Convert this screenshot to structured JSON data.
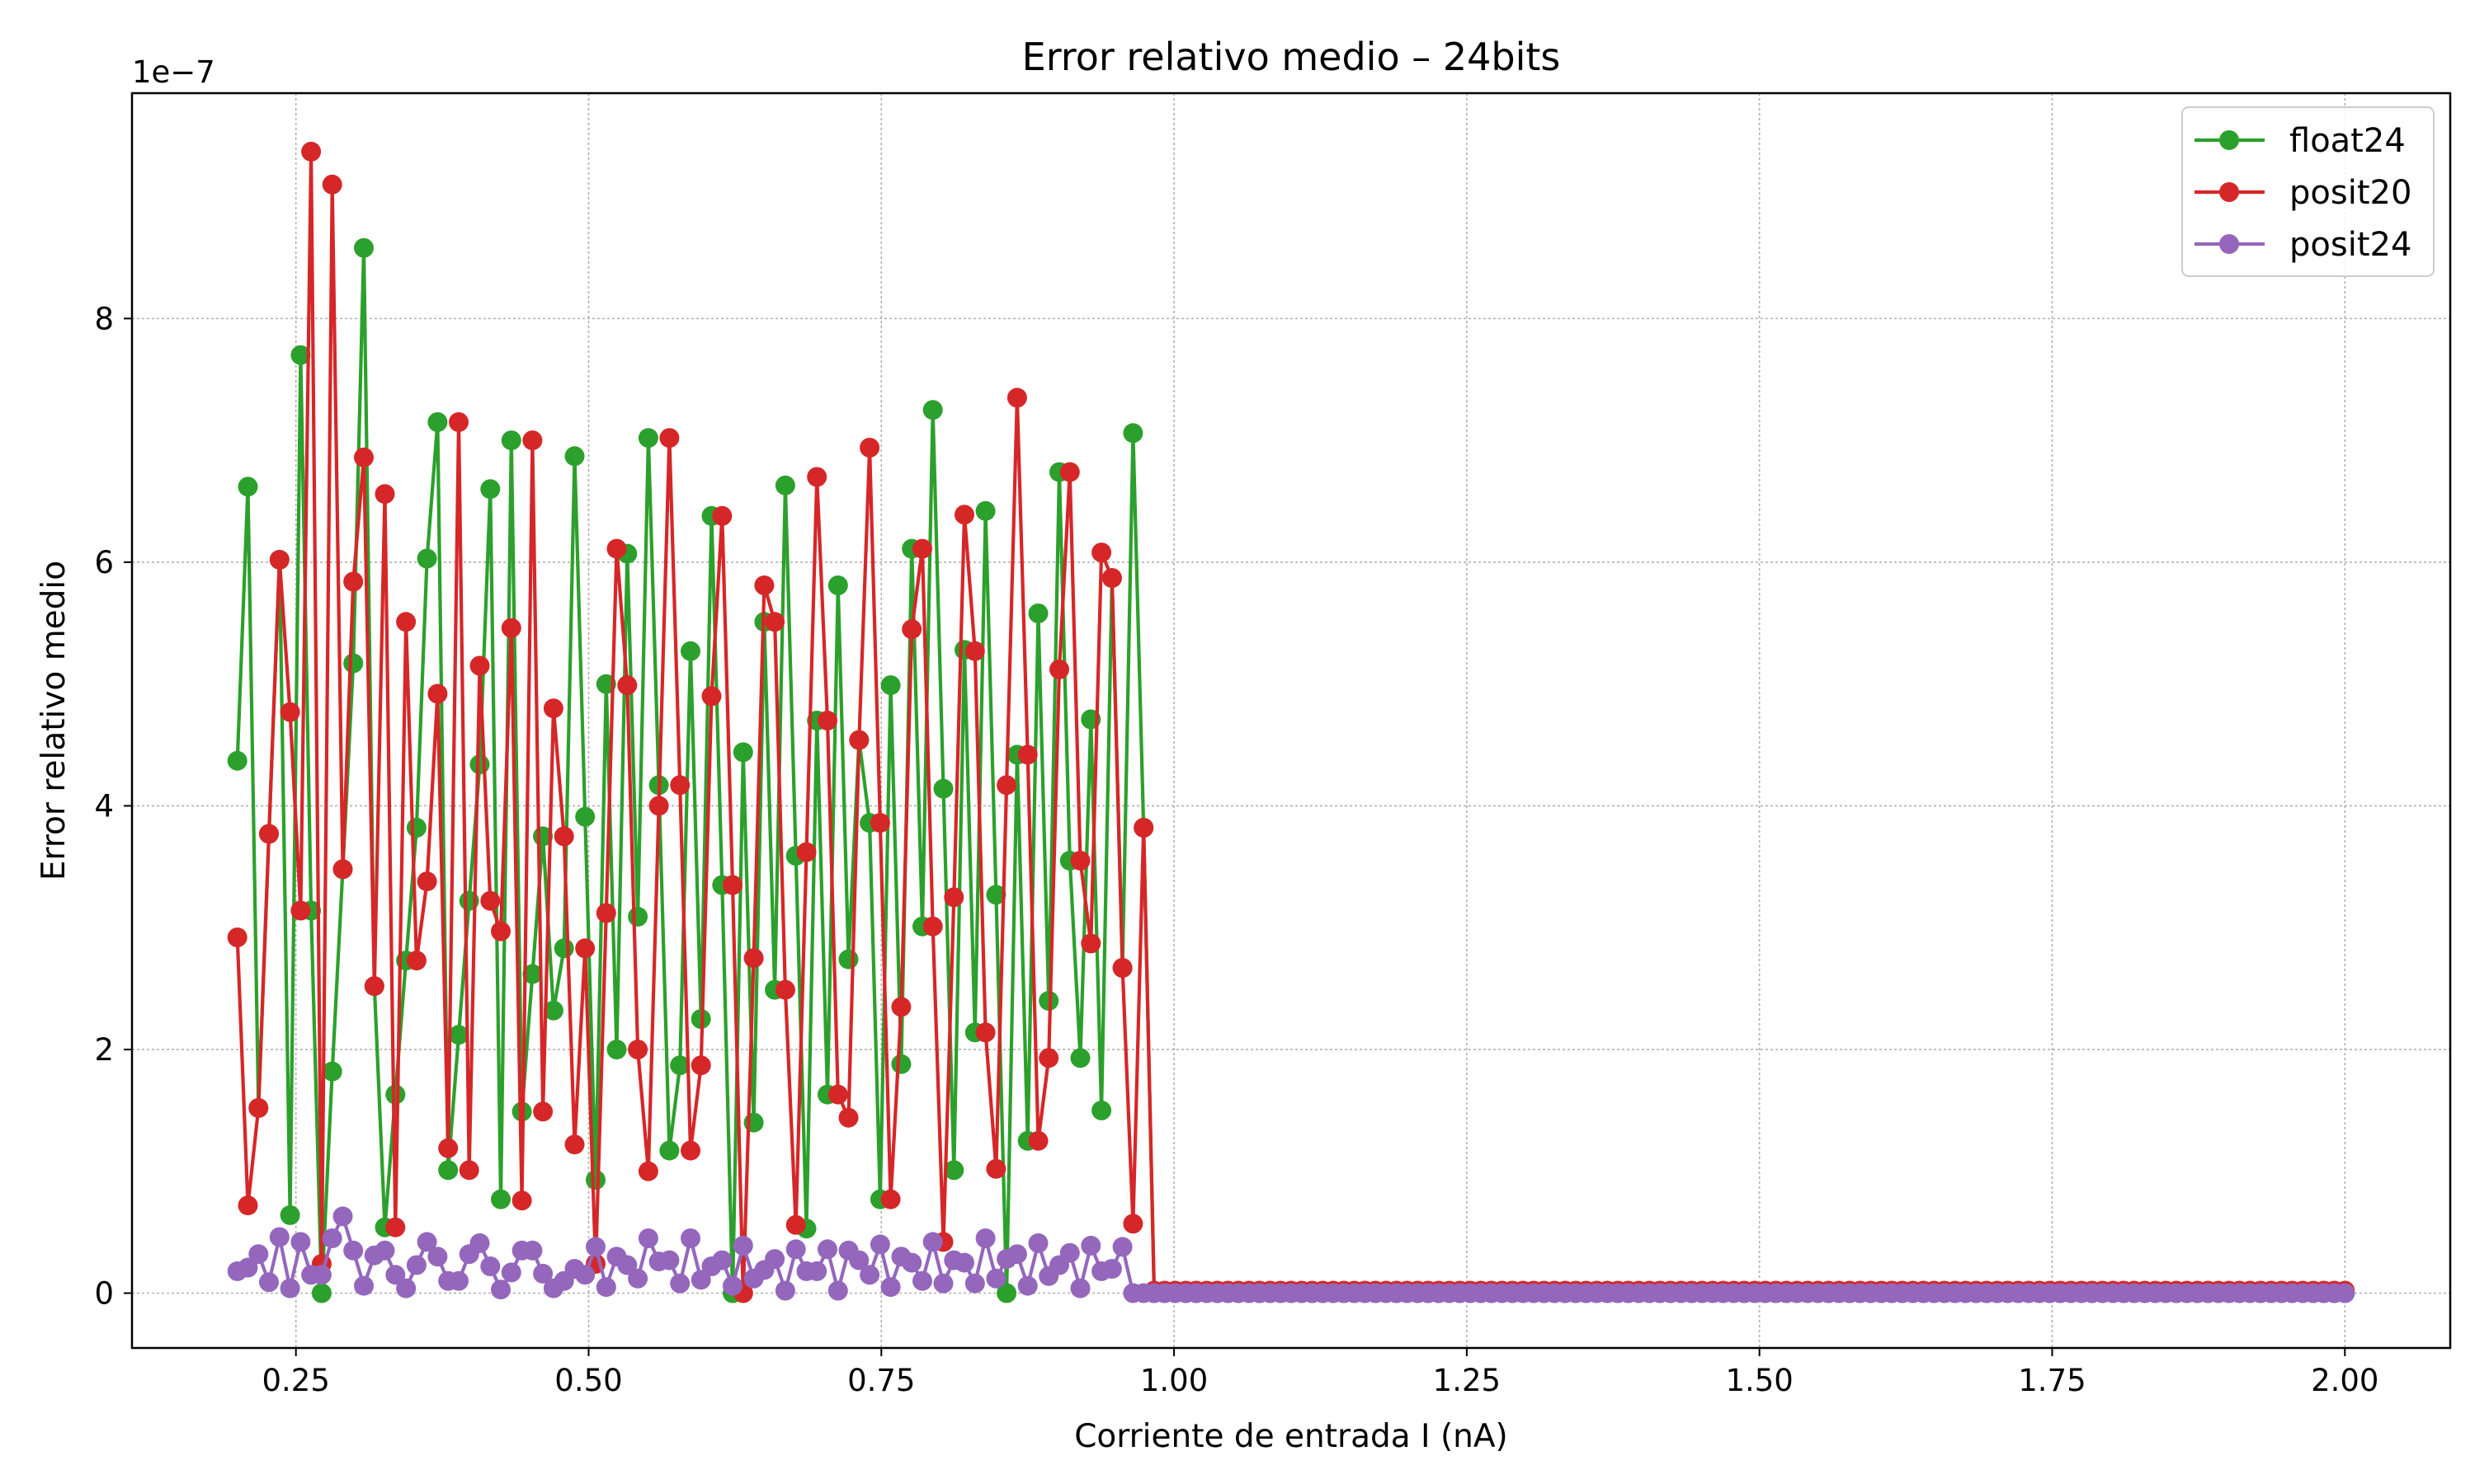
{
  "chart_data": {
    "type": "line",
    "title": "Error relativo medio – 24bits",
    "xlabel": "Corriente de entrada I (nA)",
    "ylabel": "Error relativo medio",
    "y_offset_text": "1e−7",
    "xlim": [
      0.11,
      2.09
    ],
    "ylim": [
      -4.5e-08,
      9.85e-07
    ],
    "xticks": [
      0.25,
      0.5,
      0.75,
      1.0,
      1.25,
      1.5,
      1.75,
      2.0
    ],
    "xtick_labels": [
      "0.25",
      "0.50",
      "0.75",
      "1.00",
      "1.25",
      "1.50",
      "1.75",
      "2.00"
    ],
    "yticks": [
      0,
      2e-07,
      4e-07,
      6e-07,
      8e-07
    ],
    "ytick_labels": [
      "0",
      "2",
      "4",
      "6",
      "8"
    ],
    "grid": true,
    "legend_position": "top-right",
    "x_range": {
      "start": 0.2,
      "end": 2.0,
      "points": 201
    },
    "series": [
      {
        "name": "float24",
        "color": "#2ca02c",
        "values_head_e7": [
          4.37,
          6.62,
          1.52,
          3.77,
          6.02,
          0.64,
          7.7,
          3.14,
          0.0,
          1.82,
          3.48,
          5.17,
          8.58,
          2.52,
          0.54,
          1.63,
          2.73,
          3.82,
          6.03,
          7.15,
          1.01,
          2.12,
          3.22,
          4.34,
          6.6,
          0.77,
          7.0,
          1.49,
          2.62,
          3.75,
          2.32,
          2.83,
          6.87,
          3.91,
          0.93,
          5.0,
          2.0,
          6.07,
          3.09,
          7.02,
          4.17,
          1.17,
          1.87,
          5.27,
          2.25,
          6.38,
          3.35,
          0.0,
          4.44,
          1.4,
          5.51,
          2.49,
          6.63,
          3.59,
          0.53,
          4.7,
          1.63,
          5.81,
          2.74,
          4.54,
          3.86,
          0.77,
          4.99,
          1.88,
          6.11,
          3.01,
          7.25,
          4.14,
          1.01,
          5.28,
          2.14,
          6.42,
          3.27,
          0.0,
          4.42,
          1.25,
          5.58,
          2.4,
          6.74,
          3.55,
          1.93,
          4.71,
          1.5,
          5.87,
          2.67,
          7.06,
          3.82
        ],
        "values_tail_e7": 0.0
      },
      {
        "name": "posit20",
        "color": "#d62728",
        "values_head_e7": [
          2.92,
          0.72,
          1.52,
          3.77,
          6.02,
          4.77,
          3.14,
          9.37,
          0.24,
          9.1,
          3.48,
          5.84,
          6.86,
          2.52,
          6.56,
          0.54,
          5.51,
          2.73,
          3.38,
          4.92,
          1.19,
          7.15,
          1.01,
          5.15,
          3.22,
          2.97,
          5.46,
          0.76,
          7.0,
          1.49,
          4.8,
          3.75,
          1.22,
          2.83,
          0.24,
          3.12,
          6.11,
          4.99,
          2.0,
          1.0,
          4.0,
          7.02,
          4.17,
          1.17,
          1.87,
          4.9,
          6.38,
          3.35,
          0.0,
          2.75,
          5.81,
          5.51,
          2.49,
          0.56,
          3.62,
          6.7,
          4.7,
          1.63,
          1.44,
          4.54,
          6.94,
          3.86,
          0.77,
          2.35,
          5.45,
          6.11,
          3.01,
          0.42,
          3.25,
          6.39,
          5.27,
          2.14,
          1.02,
          4.17,
          7.35,
          4.42,
          1.25,
          1.93,
          5.12,
          6.74,
          3.55,
          2.87,
          6.08,
          5.87,
          2.67,
          0.57,
          3.82
        ],
        "values_tail_e7": 0.02
      },
      {
        "name": "posit24",
        "color": "#9467bd",
        "values_head_e7": [
          0.18,
          0.21,
          0.32,
          0.09,
          0.46,
          0.04,
          0.42,
          0.15,
          0.15,
          0.45,
          0.63,
          0.35,
          0.06,
          0.31,
          0.35,
          0.15,
          0.04,
          0.23,
          0.42,
          0.3,
          0.1,
          0.1,
          0.32,
          0.41,
          0.22,
          0.03,
          0.17,
          0.35,
          0.35,
          0.16,
          0.04,
          0.1,
          0.2,
          0.15,
          0.38,
          0.05,
          0.3,
          0.23,
          0.12,
          0.45,
          0.26,
          0.27,
          0.08,
          0.45,
          0.11,
          0.22,
          0.27,
          0.06,
          0.39,
          0.12,
          0.19,
          0.28,
          0.02,
          0.36,
          0.18,
          0.18,
          0.36,
          0.02,
          0.35,
          0.27,
          0.15,
          0.4,
          0.05,
          0.3,
          0.25,
          0.1,
          0.42,
          0.08,
          0.27,
          0.25,
          0.08,
          0.45,
          0.12,
          0.28,
          0.32,
          0.06,
          0.41,
          0.14,
          0.23,
          0.33,
          0.04,
          0.39,
          0.18,
          0.2,
          0.38
        ],
        "values_tail_e7": 0.0
      }
    ]
  }
}
